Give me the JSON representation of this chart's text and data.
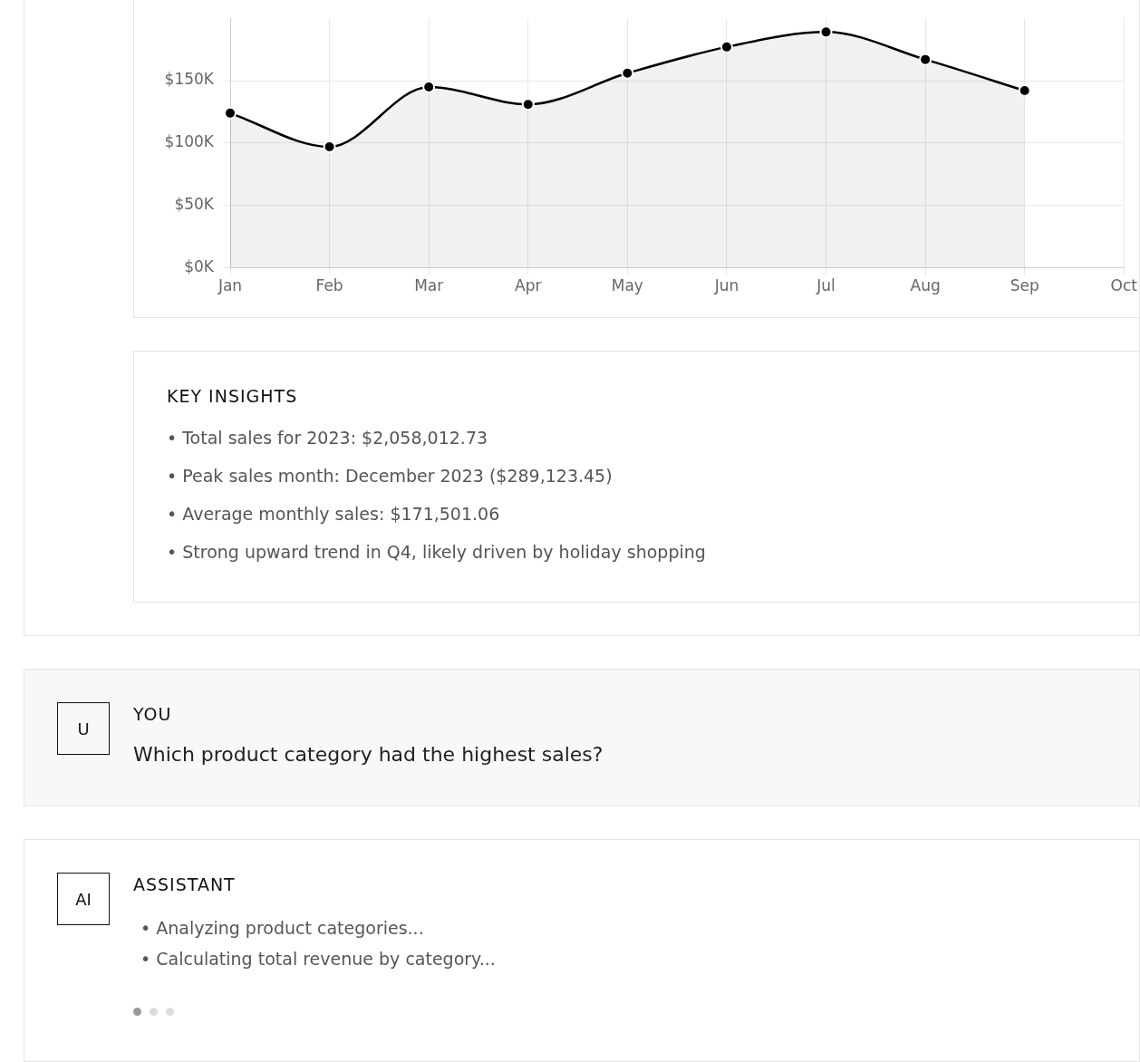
{
  "chart_data": {
    "type": "area",
    "categories": [
      "Jan",
      "Feb",
      "Mar",
      "Apr",
      "May",
      "Jun",
      "Jul",
      "Aug",
      "Sep",
      "Oct"
    ],
    "series": [
      {
        "color": "#000000",
        "values": [
          124000,
          97000,
          145000,
          131000,
          156000,
          177000,
          189000,
          167000,
          142000,
          null
        ]
      }
    ],
    "ylim": [
      0,
      200000
    ],
    "yticks": [
      {
        "value": 0,
        "label": "$0K"
      },
      {
        "value": 50000,
        "label": "$50K"
      },
      {
        "value": 100000,
        "label": "$100K"
      },
      {
        "value": 150000,
        "label": "$150K"
      }
    ],
    "grid": true,
    "legend": false,
    "marker": "circle",
    "line_style": "solid",
    "annotations": [
      "KEY INSIGHTS",
      "• Total sales for 2023: $2,058,012.73",
      "• Peak sales month: December 2023 ($289,123.45)",
      "• Average monthly sales: $171,501.06",
      "• Strong upward trend in Q4, likely driven by holiday shopping",
      "U",
      "YOU",
      "Which product category had the highest sales?",
      "AI",
      "ASSISTANT",
      "• Analyzing product categories...",
      "• Calculating total revenue by category..."
    ]
  }
}
